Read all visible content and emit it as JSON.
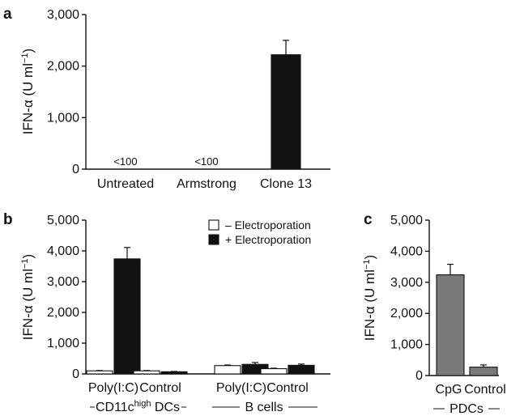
{
  "chart_data": [
    {
      "panel": "a",
      "type": "bar",
      "categories": [
        "Untreated",
        "Armstrong",
        "Clone 13"
      ],
      "values": [
        0,
        0,
        2220
      ],
      "errors": [
        0,
        0,
        280
      ],
      "value_labels": [
        "<100",
        "<100",
        ""
      ],
      "ylabel": "IFN-α (U ml⁻¹)",
      "ylim": [
        0,
        3000
      ],
      "yticks": [
        0,
        1000,
        2000,
        3000
      ],
      "ytick_labels": [
        "0",
        "1,000",
        "2,000",
        "3,000"
      ],
      "bar_color": "#111111",
      "grid": false
    },
    {
      "panel": "b",
      "type": "bar",
      "categories": [
        "Poly(I:C)",
        "Control",
        "Poly(I:C)",
        "Control"
      ],
      "groups": [
        {
          "label_pre": "CD11c",
          "label_sup": "high",
          "label_post": " DCs"
        },
        {
          "label": "B cells"
        }
      ],
      "series": [
        {
          "name": "– Electroporation",
          "values": [
            100,
            100,
            270,
            170
          ],
          "errors": [
            10,
            10,
            20,
            15
          ],
          "color": "#ffffff"
        },
        {
          "name": "+ Electroporation",
          "values": [
            3740,
            70,
            310,
            280
          ],
          "errors": [
            370,
            10,
            60,
            40
          ],
          "color": "#111111"
        }
      ],
      "ylabel": "IFN-α (U ml⁻¹)",
      "ylim": [
        0,
        5000
      ],
      "yticks": [
        0,
        1000,
        2000,
        3000,
        4000,
        5000
      ],
      "ytick_labels": [
        "0",
        "1,000",
        "2,000",
        "3,000",
        "4,000",
        "5,000"
      ],
      "legend_position": "top-right",
      "grid": false
    },
    {
      "panel": "c",
      "type": "bar",
      "categories": [
        "CpG",
        "Control"
      ],
      "values": [
        3240,
        270
      ],
      "errors": [
        340,
        70
      ],
      "group_label": "PDCs",
      "ylabel": "IFN-α (U ml⁻¹)",
      "ylim": [
        0,
        5000
      ],
      "yticks": [
        0,
        1000,
        2000,
        3000,
        4000,
        5000
      ],
      "ytick_labels": [
        "0",
        "1,000",
        "2,000",
        "3,000",
        "4,000",
        "5,000"
      ],
      "bar_color": "#7a7a7a",
      "grid": false
    }
  ]
}
